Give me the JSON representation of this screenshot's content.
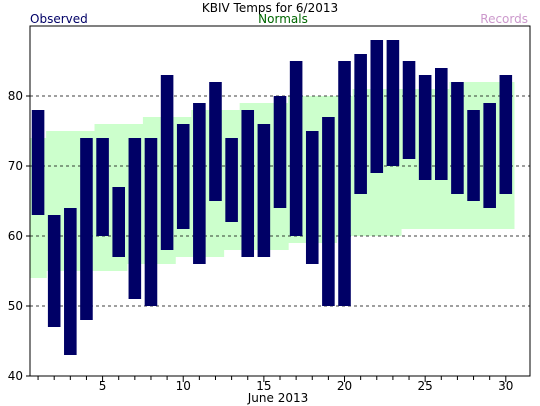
{
  "chart_data": {
    "type": "bar",
    "title": "KBIV Temps for 6/2013",
    "legend": {
      "observed": "Observed",
      "normals": "Normals",
      "records": "Records"
    },
    "xlabel": "June 2013",
    "ylabel": "",
    "ylim": [
      40,
      90
    ],
    "xlim": [
      0.5,
      31.5
    ],
    "yticks": [
      40,
      50,
      60,
      70,
      80
    ],
    "xticks": [
      5,
      10,
      15,
      20,
      25,
      30
    ],
    "grid": true,
    "colors": {
      "observed": "#000066",
      "normals": "#ccffcc",
      "records": "#cc99cc",
      "normals_text": "#006600",
      "grid": "#000000"
    },
    "days": [
      1,
      2,
      3,
      4,
      5,
      6,
      7,
      8,
      9,
      10,
      11,
      12,
      13,
      14,
      15,
      16,
      17,
      18,
      19,
      20,
      21,
      22,
      23,
      24,
      25,
      26,
      27,
      28,
      29,
      30
    ],
    "observed": {
      "highs": [
        78,
        63,
        64,
        74,
        74,
        67,
        74,
        74,
        83,
        76,
        79,
        82,
        74,
        78,
        76,
        80,
        85,
        75,
        77,
        85,
        86,
        88,
        88,
        85,
        83,
        84,
        82,
        78,
        79,
        83
      ],
      "lows": [
        63,
        47,
        43,
        48,
        60,
        57,
        51,
        50,
        58,
        61,
        56,
        65,
        62,
        57,
        57,
        64,
        60,
        56,
        50,
        50,
        66,
        69,
        70,
        71,
        68,
        68,
        66,
        65,
        64,
        66
      ]
    },
    "normals": {
      "highs": [
        74,
        75,
        75,
        75,
        76,
        76,
        76,
        77,
        77,
        77,
        78,
        78,
        78,
        79,
        79,
        79,
        80,
        80,
        80,
        80,
        81,
        81,
        81,
        81,
        81,
        81,
        82,
        82,
        82,
        82
      ],
      "lows": [
        54,
        55,
        55,
        55,
        55,
        55,
        56,
        56,
        56,
        57,
        57,
        57,
        58,
        58,
        58,
        58,
        59,
        59,
        59,
        60,
        60,
        60,
        60,
        61,
        61,
        61,
        61,
        61,
        61,
        61
      ]
    }
  }
}
